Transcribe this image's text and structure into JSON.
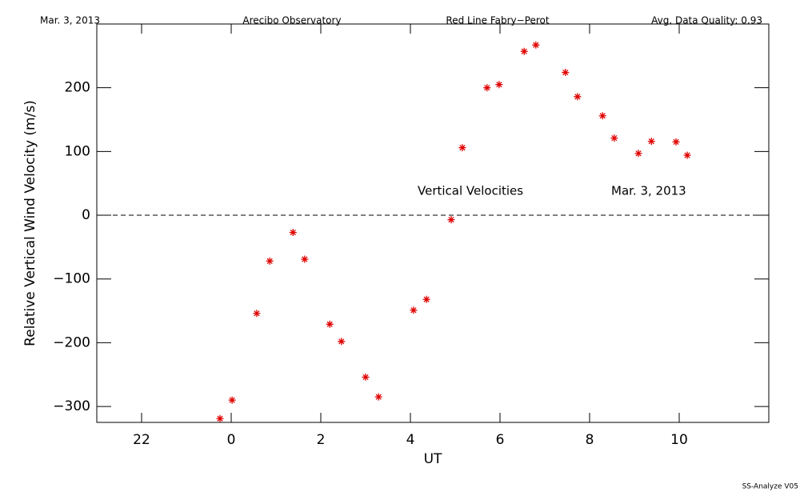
{
  "chart_data": {
    "type": "scatter",
    "header": [
      "Mar. 3, 2013",
      "Arecibo Observatory",
      "Red Line Fabry−Perot",
      "Avg. Data Quality: 0.93"
    ],
    "annotations": [
      "Vertical Velocities",
      "Mar. 3, 2013"
    ],
    "ylabel": "Relative Vertical Wind Velocity (m/s)",
    "xlabel": "UT",
    "footer": "SS-Analyze V05",
    "xlim": [
      -3,
      12
    ],
    "xticks": [
      {
        "value": -2,
        "label": "22"
      },
      0,
      2,
      4,
      6,
      8,
      10
    ],
    "ylim": [
      -325,
      300
    ],
    "yticks": [
      -300,
      -200,
      -100,
      0,
      100,
      200
    ],
    "zero_line": true,
    "marker": "asterisk",
    "series": [
      {
        "color": "#e00000",
        "x": [
          -0.25,
          0.02,
          0.57,
          0.86,
          1.38,
          1.64,
          2.2,
          2.46,
          3.0,
          3.29,
          4.07,
          4.36,
          4.91,
          5.16,
          5.71,
          5.98,
          6.54,
          6.8,
          7.46,
          7.73,
          8.29,
          8.55,
          9.09,
          9.38,
          9.93,
          10.18
        ],
        "values": [
          -319,
          -290,
          -154,
          -72,
          -27,
          -69,
          -171,
          -198,
          -254,
          -285,
          -149,
          -132,
          -7,
          106,
          200,
          205,
          257,
          267,
          224,
          186,
          156,
          121,
          97,
          116,
          115,
          94
        ]
      }
    ]
  }
}
